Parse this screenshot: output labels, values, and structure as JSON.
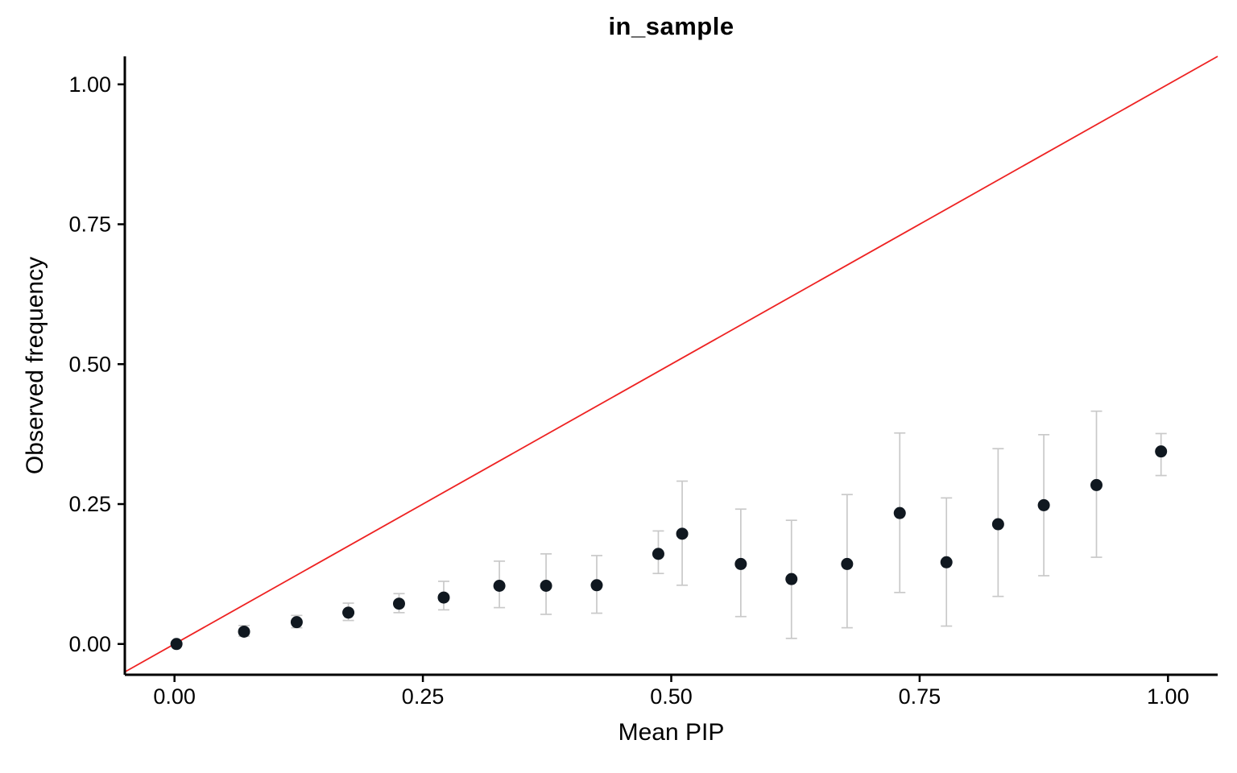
{
  "chart_data": {
    "type": "scatter",
    "title": "in_sample",
    "xlabel": "Mean PIP",
    "ylabel": "Observed frequency",
    "xlim": [
      -0.05,
      1.05
    ],
    "ylim": [
      -0.055,
      1.05
    ],
    "grid": false,
    "legend": "none",
    "x_ticks": [
      0,
      0.25,
      0.5,
      0.75,
      1.0
    ],
    "x_tick_labels": [
      "0.00",
      "0.25",
      "0.50",
      "0.75",
      "1.00"
    ],
    "y_ticks": [
      0,
      0.25,
      0.5,
      0.75,
      1.0
    ],
    "y_tick_labels": [
      "0.00",
      "0.25",
      "0.50",
      "0.75",
      "1.00"
    ],
    "identity_line": {
      "slope": 1,
      "intercept": 0,
      "color": "#EE2222"
    },
    "point_color": "#101820",
    "errorbar_color": "#C9C9C9",
    "points": [
      {
        "x": 0.002,
        "y": 0.0,
        "lo": 0.0,
        "hi": 0.004
      },
      {
        "x": 0.07,
        "y": 0.022,
        "lo": 0.014,
        "hi": 0.033
      },
      {
        "x": 0.123,
        "y": 0.039,
        "lo": 0.029,
        "hi": 0.051
      },
      {
        "x": 0.175,
        "y": 0.056,
        "lo": 0.042,
        "hi": 0.073
      },
      {
        "x": 0.226,
        "y": 0.072,
        "lo": 0.056,
        "hi": 0.09
      },
      {
        "x": 0.271,
        "y": 0.083,
        "lo": 0.061,
        "hi": 0.112
      },
      {
        "x": 0.327,
        "y": 0.104,
        "lo": 0.065,
        "hi": 0.148
      },
      {
        "x": 0.374,
        "y": 0.104,
        "lo": 0.053,
        "hi": 0.161
      },
      {
        "x": 0.425,
        "y": 0.105,
        "lo": 0.055,
        "hi": 0.158
      },
      {
        "x": 0.487,
        "y": 0.161,
        "lo": 0.126,
        "hi": 0.202
      },
      {
        "x": 0.511,
        "y": 0.197,
        "lo": 0.105,
        "hi": 0.291
      },
      {
        "x": 0.57,
        "y": 0.143,
        "lo": 0.049,
        "hi": 0.241
      },
      {
        "x": 0.621,
        "y": 0.116,
        "lo": 0.01,
        "hi": 0.221
      },
      {
        "x": 0.677,
        "y": 0.143,
        "lo": 0.029,
        "hi": 0.267
      },
      {
        "x": 0.73,
        "y": 0.234,
        "lo": 0.092,
        "hi": 0.377
      },
      {
        "x": 0.777,
        "y": 0.146,
        "lo": 0.032,
        "hi": 0.261
      },
      {
        "x": 0.829,
        "y": 0.214,
        "lo": 0.085,
        "hi": 0.349
      },
      {
        "x": 0.875,
        "y": 0.248,
        "lo": 0.122,
        "hi": 0.374
      },
      {
        "x": 0.928,
        "y": 0.284,
        "lo": 0.155,
        "hi": 0.416
      },
      {
        "x": 0.993,
        "y": 0.344,
        "lo": 0.301,
        "hi": 0.376
      }
    ]
  }
}
